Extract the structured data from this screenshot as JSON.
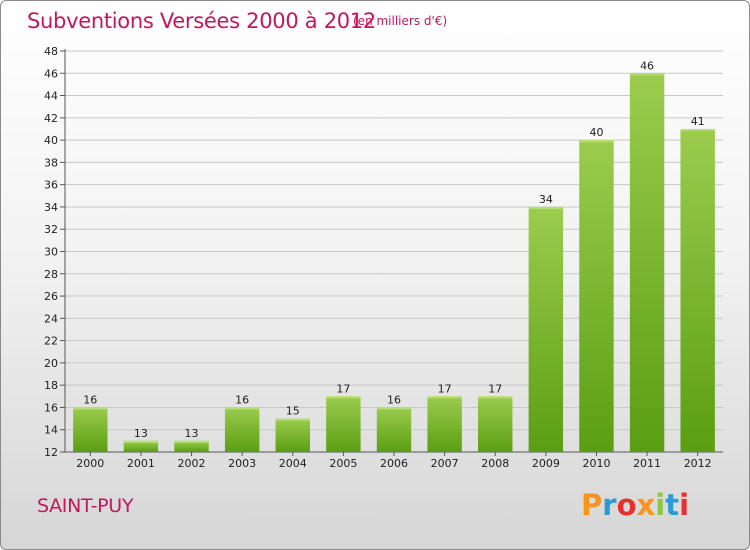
{
  "header": {
    "title": "Subventions Versées 2000 à 2012",
    "subtitle": "(en milliers d'€)"
  },
  "footer": {
    "commune": "SAINT-PUY",
    "logo_text": "Proxiti",
    "logo_colors": [
      "#f7941d",
      "#2b9bd6",
      "#e8312f",
      "#f7941d",
      "#8dc63f",
      "#2b9bd6",
      "#e8312f"
    ]
  },
  "colors": {
    "bar_top": "#9ccc4e",
    "bar_bottom": "#5a9e12",
    "title": "#c2185b",
    "grid": "#c8c8c8"
  },
  "chart_data": {
    "type": "bar",
    "title": "Subventions Versées 2000 à 2012",
    "subtitle": "(en milliers d'€)",
    "categories": [
      "2000",
      "2001",
      "2002",
      "2003",
      "2004",
      "2005",
      "2006",
      "2007",
      "2008",
      "2009",
      "2010",
      "2011",
      "2012"
    ],
    "values": [
      16,
      13,
      13,
      16,
      15,
      17,
      16,
      17,
      17,
      34,
      40,
      46,
      41
    ],
    "ylim": [
      12,
      48
    ],
    "yticks": [
      12,
      14,
      16,
      18,
      20,
      22,
      24,
      26,
      28,
      30,
      32,
      34,
      36,
      38,
      40,
      42,
      44,
      46,
      48
    ],
    "grid": true,
    "data_labels": true
  }
}
